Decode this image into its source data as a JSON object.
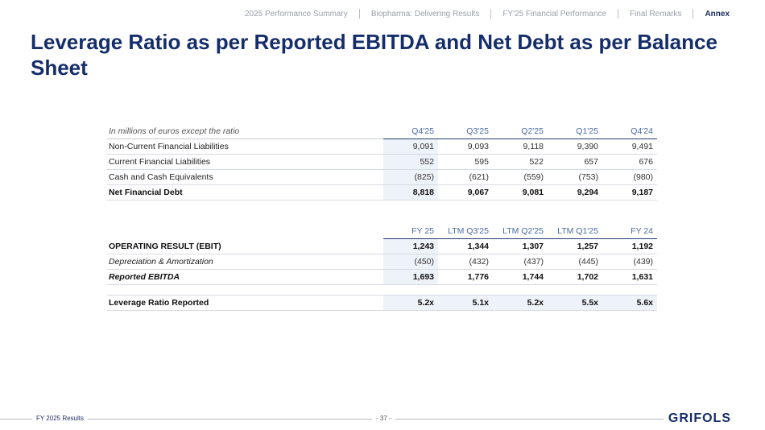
{
  "nav": {
    "items": [
      "2025 Performance Summary",
      "Biopharma: Delivering Results",
      "FY'25 Financial Performance",
      "Final Remarks"
    ],
    "active": "Annex"
  },
  "title": "Leverage Ratio as per Reported EBITDA and Net Debt as per Balance Sheet",
  "debt_table": {
    "label_header": "In millions of euros except the ratio",
    "columns": [
      "Q4'25",
      "Q3'25",
      "Q2'25",
      "Q1'25",
      "Q4'24"
    ],
    "rows": [
      {
        "label": "Non-Current Financial Liabilities",
        "values": [
          "9,091",
          "9,093",
          "9,118",
          "9,390",
          "9,491"
        ]
      },
      {
        "label": "Current Financial Liabilities",
        "values": [
          "552",
          "595",
          "522",
          "657",
          "676"
        ]
      },
      {
        "label": "Cash and Cash Equivalents",
        "values": [
          "(825)",
          "(621)",
          "(559)",
          "(753)",
          "(980)"
        ]
      },
      {
        "label": "Net Financial Debt",
        "values": [
          "8,818",
          "9,067",
          "9,081",
          "9,294",
          "9,187"
        ]
      }
    ]
  },
  "ebitda_table": {
    "columns": [
      "FY 25",
      "LTM Q3'25",
      "LTM Q2'25",
      "LTM Q1'25",
      "FY 24"
    ],
    "rows": [
      {
        "label": "OPERATING RESULT (EBIT)",
        "values": [
          "1,243",
          "1,344",
          "1,307",
          "1,257",
          "1,192"
        ]
      },
      {
        "label": "Depreciation & Amortization",
        "values": [
          "(450)",
          "(432)",
          "(437)",
          "(445)",
          "(439)"
        ]
      },
      {
        "label": "Reported EBITDA",
        "values": [
          "1,693",
          "1,776",
          "1,744",
          "1,702",
          "1,631"
        ]
      }
    ]
  },
  "leverage": {
    "label": "Leverage Ratio Reported",
    "values": [
      "5.2x",
      "5.1x",
      "5.2x",
      "5.5x",
      "5.6x"
    ]
  },
  "footer": {
    "left": "FY 2025 Results",
    "page": "- 37 -",
    "logo": "GRIFOLS"
  }
}
